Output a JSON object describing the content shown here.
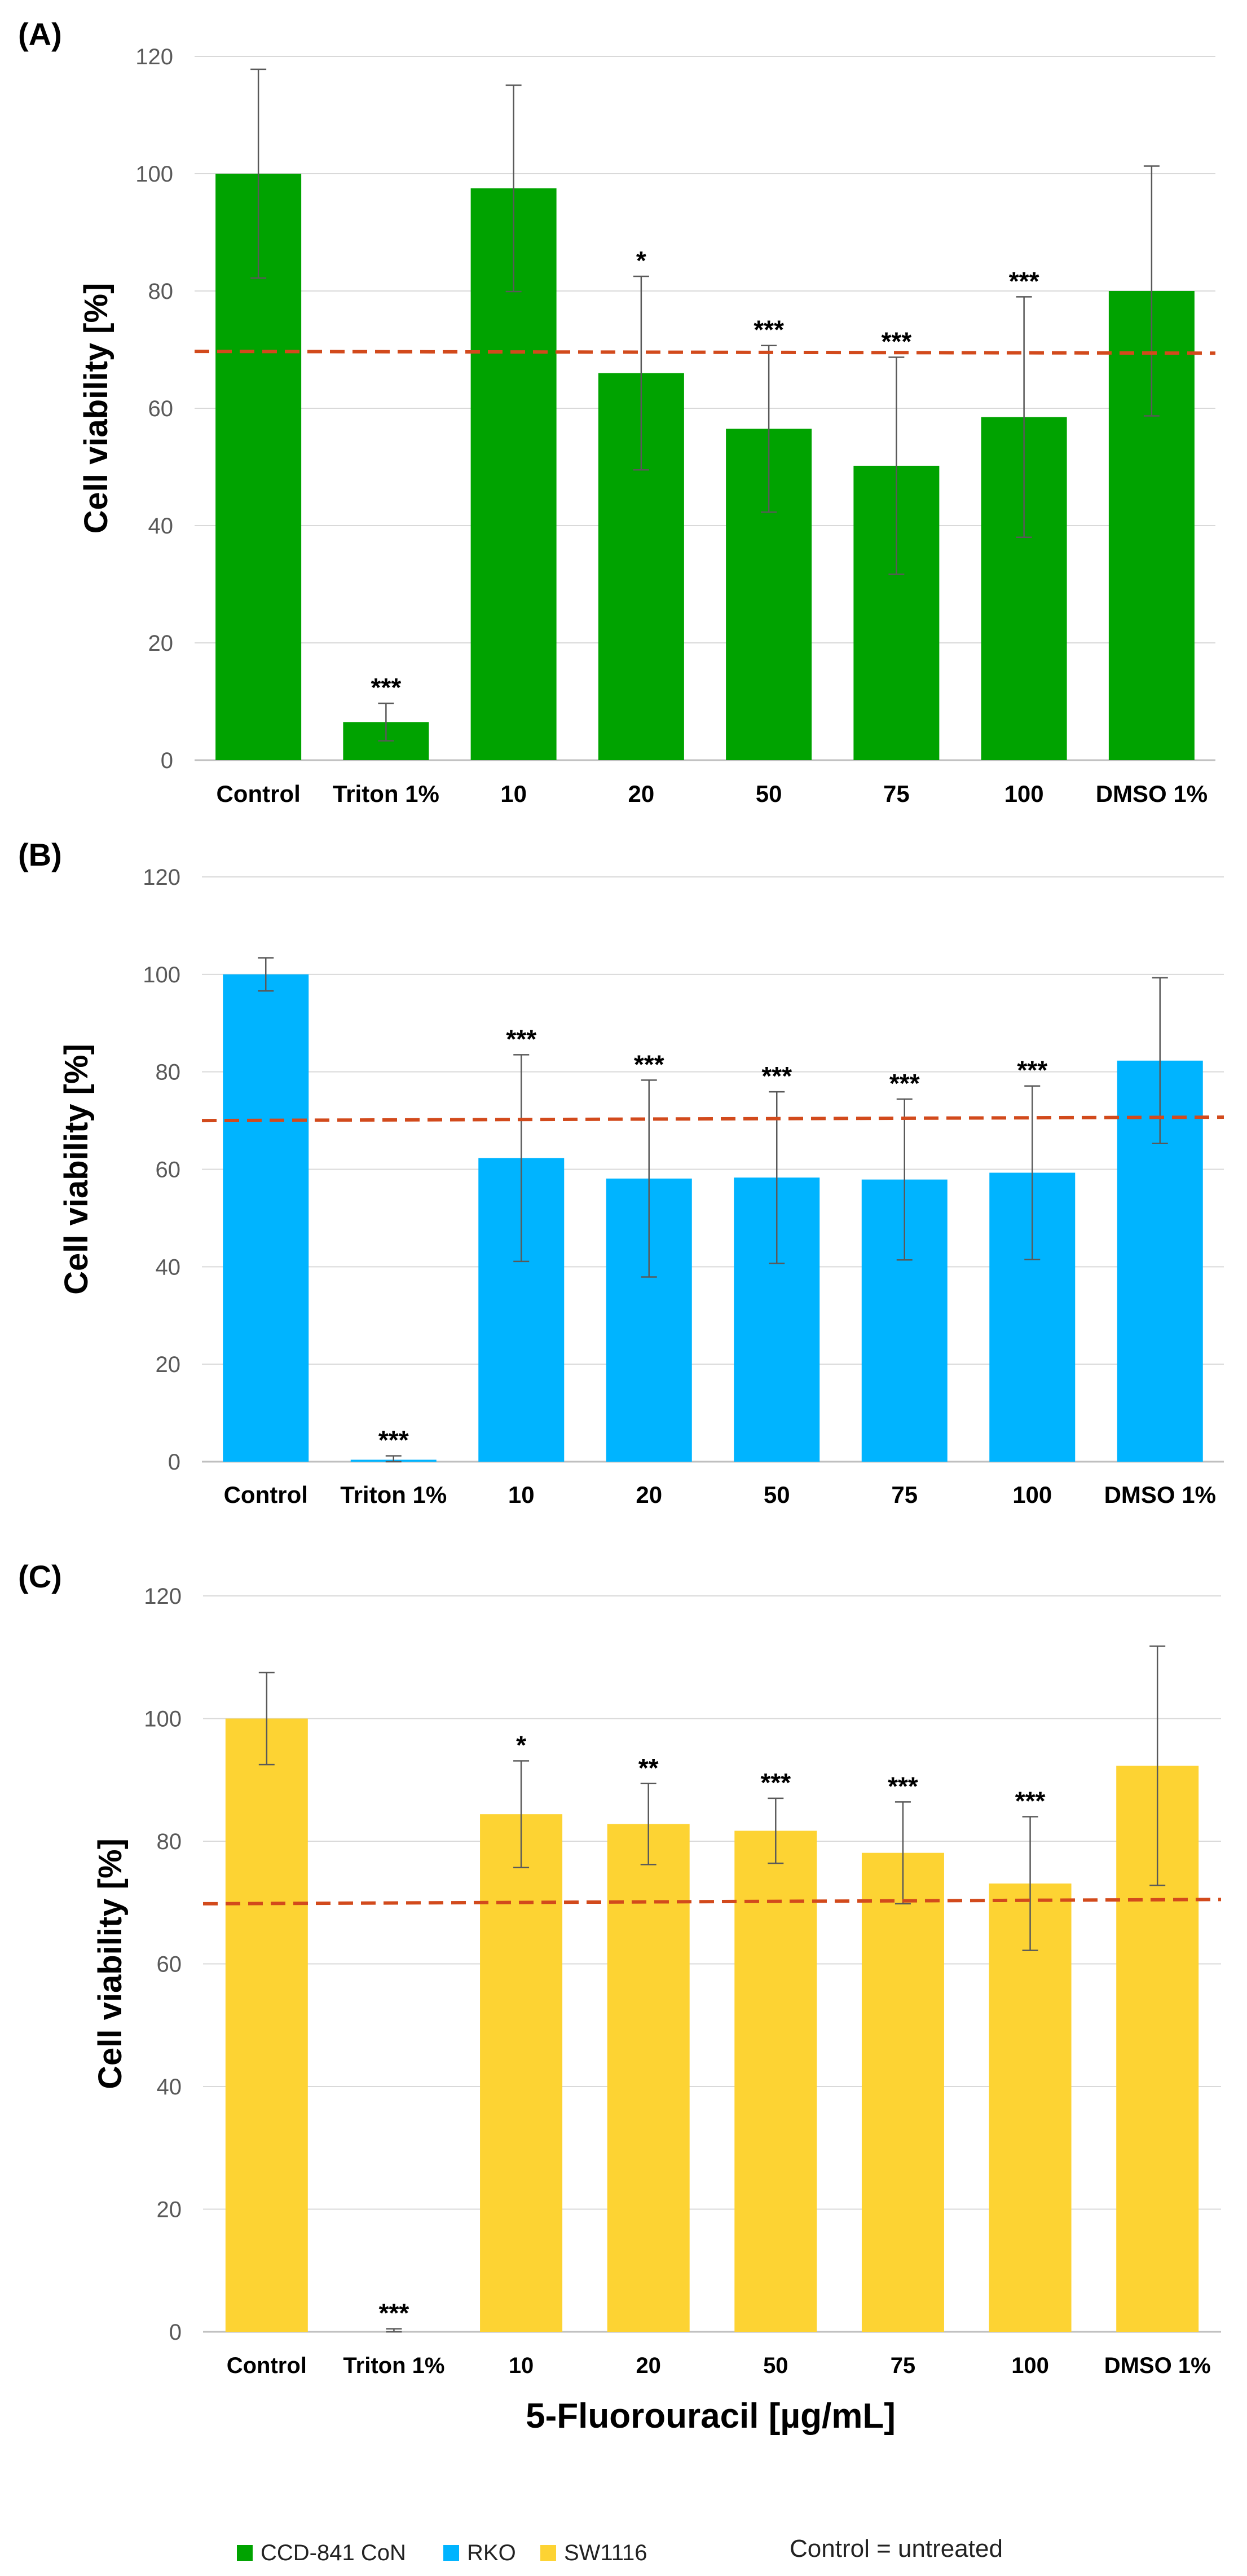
{
  "x_axis_title": "5-Fluorouracil [µg/mL]",
  "legend": {
    "items": [
      {
        "label": "CCD-841 CoN",
        "color": "#00A300"
      },
      {
        "label": "RKO",
        "color": "#00B4FF"
      },
      {
        "label": "SW1116",
        "color": "#FDD333"
      }
    ],
    "note": "Control = untreated"
  },
  "chart_data": [
    {
      "type": "bar",
      "panel_label": "(A)",
      "cell_line": "CCD-841 CoN",
      "color": "#00A300",
      "ylabel": "Cell viability [%]",
      "xlabel": "5-Fluorouracil [µg/mL]",
      "ylim": [
        0,
        120
      ],
      "yticks": [
        0,
        20,
        40,
        60,
        80,
        100,
        120
      ],
      "grid": true,
      "categories": [
        "Control",
        "Triton 1%",
        "10",
        "20",
        "50",
        "75",
        "100",
        "DMSO 1%"
      ],
      "values": [
        100,
        6.5,
        97.5,
        66,
        56.5,
        50.2,
        58.5,
        80
      ],
      "errors": [
        17.8,
        3.2,
        17.6,
        16.5,
        14.2,
        18.5,
        20.5,
        21.3
      ],
      "significance": [
        "",
        "***",
        "",
        "*",
        "***",
        "***",
        "***",
        ""
      ],
      "reference_line": {
        "y_start": 69.7,
        "y_end": 69.4,
        "style": "dashed",
        "color": "#D24A1C"
      }
    },
    {
      "type": "bar",
      "panel_label": "(B)",
      "cell_line": "RKO",
      "color": "#00B4FF",
      "ylabel": "Cell viability [%]",
      "xlabel": "5-Fluorouracil [µg/mL]",
      "ylim": [
        0,
        120
      ],
      "yticks": [
        0,
        20,
        40,
        60,
        80,
        100,
        120
      ],
      "grid": true,
      "categories": [
        "Control",
        "Triton 1%",
        "10",
        "20",
        "50",
        "75",
        "100",
        "DMSO 1%"
      ],
      "values": [
        100,
        0.4,
        62.3,
        58.1,
        58.3,
        57.9,
        59.3,
        82.3
      ],
      "errors": [
        3.4,
        0.8,
        21.2,
        20.2,
        17.6,
        16.5,
        17.8,
        17
      ],
      "significance": [
        "",
        "***",
        "***",
        "***",
        "***",
        "***",
        "***",
        ""
      ],
      "reference_line": {
        "y_start": 70,
        "y_end": 70.7,
        "style": "dashed",
        "color": "#D24A1C"
      }
    },
    {
      "type": "bar",
      "panel_label": "(C)",
      "cell_line": "SW1116",
      "color": "#FDD333",
      "ylabel": "Cell viability [%]",
      "xlabel": "5-Fluorouracil [µg/mL]",
      "ylim": [
        0,
        120
      ],
      "yticks": [
        0,
        20,
        40,
        60,
        80,
        100,
        120
      ],
      "grid": true,
      "categories": [
        "Control",
        "Triton 1%",
        "10",
        "20",
        "50",
        "75",
        "100",
        "DMSO 1%"
      ],
      "values": [
        100,
        0,
        84.4,
        82.8,
        81.7,
        78.1,
        73.1,
        92.3
      ],
      "errors": [
        7.5,
        0.5,
        8.7,
        6.6,
        5.3,
        8.3,
        10.9,
        19.5
      ],
      "significance": [
        "",
        "***",
        "*",
        "**",
        "***",
        "***",
        "***",
        ""
      ],
      "reference_line": {
        "y_start": 69.8,
        "y_end": 70.5,
        "style": "dashed",
        "color": "#D24A1C"
      }
    }
  ]
}
